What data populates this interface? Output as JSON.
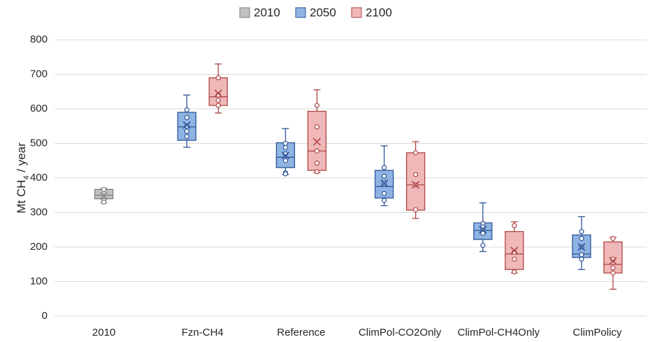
{
  "chart_data": {
    "type": "box",
    "y_label": [
      "Mt CH",
      "4",
      " / year"
    ],
    "categories": [
      "2010",
      "Fzn-CH4",
      "Reference",
      "ClimPol-CO2Only",
      "ClimPol-CH4Only",
      "ClimPolicy"
    ],
    "ylim": [
      0,
      800
    ],
    "yticks": [
      0,
      100,
      200,
      300,
      400,
      500,
      600,
      700,
      800
    ],
    "grid": true,
    "series": [
      {
        "name": "2010",
        "color": "#c0c0c0",
        "edge": "#808080",
        "values": [
          {
            "min": 328,
            "q1": 340,
            "median": 350,
            "q3": 367,
            "max": 370,
            "mean": 348,
            "points": [
              367,
              335,
              330
            ]
          },
          null,
          null,
          null,
          null,
          null
        ]
      },
      {
        "name": "2050",
        "color": "#8fb4e3",
        "edge": "#2f5597",
        "values": [
          null,
          {
            "min": 489,
            "q1": 509,
            "median": 548,
            "q3": 590,
            "max": 640,
            "mean": 553,
            "points": [
              597,
              575,
              550,
              535,
              520
            ]
          },
          {
            "min": 410,
            "q1": 430,
            "median": 460,
            "q3": 502,
            "max": 543,
            "mean": 465,
            "points": [
              500,
              488,
              470,
              450,
              415,
              412
            ]
          },
          {
            "min": 320,
            "q1": 342,
            "median": 375,
            "q3": 422,
            "max": 493,
            "mean": 385,
            "points": [
              430,
              405,
              385,
              355,
              335
            ]
          },
          {
            "min": 187,
            "q1": 222,
            "median": 248,
            "q3": 270,
            "max": 328,
            "mean": 250,
            "points": [
              268,
              258,
              250,
              240,
              205
            ]
          },
          {
            "min": 135,
            "q1": 170,
            "median": 180,
            "q3": 235,
            "max": 288,
            "mean": 200,
            "points": [
              245,
              225,
              200,
              178,
              165
            ]
          }
        ]
      },
      {
        "name": "2100",
        "color": "#f0b8b8",
        "edge": "#b04545",
        "values": [
          null,
          {
            "min": 588,
            "q1": 610,
            "median": 635,
            "q3": 690,
            "max": 730,
            "mean": 645,
            "points": [
              690,
              640,
              625,
              610
            ]
          },
          {
            "min": 415,
            "q1": 422,
            "median": 478,
            "q3": 593,
            "max": 655,
            "mean": 505,
            "points": [
              610,
              548,
              478,
              443,
              418
            ]
          },
          {
            "min": 283,
            "q1": 307,
            "median": 380,
            "q3": 473,
            "max": 505,
            "mean": 380,
            "points": [
              473,
              410,
              380,
              308
            ]
          },
          {
            "min": 125,
            "q1": 135,
            "median": 180,
            "q3": 245,
            "max": 273,
            "mean": 190,
            "points": [
              262,
              185,
              165,
              128
            ]
          },
          {
            "min": 78,
            "q1": 125,
            "median": 150,
            "q3": 215,
            "max": 228,
            "mean": 160,
            "points": [
              225,
              165,
              140,
              125
            ]
          }
        ]
      }
    ]
  }
}
